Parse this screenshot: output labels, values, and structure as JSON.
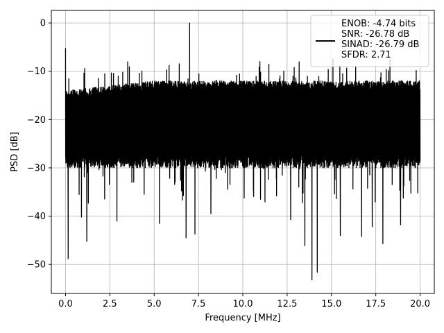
{
  "chart_data": {
    "type": "line",
    "title": "",
    "xlabel": "Frequency [MHz]",
    "ylabel": "PSD [dB]",
    "xlim": [
      -0.8,
      20.8
    ],
    "ylim": [
      -56,
      2.6
    ],
    "xticks": [
      0,
      2.5,
      5,
      7.5,
      10,
      12.5,
      15,
      17.5,
      20
    ],
    "xtick_labels": [
      "0.0",
      "2.5",
      "5.0",
      "7.5",
      "10.0",
      "12.5",
      "15.0",
      "17.5",
      "20.0"
    ],
    "yticks": [
      0,
      -10,
      -20,
      -30,
      -40,
      -50
    ],
    "ytick_labels": [
      "0",
      "−10",
      "−20",
      "−30",
      "−40",
      "−50"
    ],
    "grid": true,
    "legend_position": "top-right",
    "series": [
      {
        "color": "#000000",
        "x_range": [
          0,
          20
        ],
        "typical_band": [
          -30,
          -12
        ],
        "notable_points": [
          {
            "x": 0.0,
            "y": -5.2
          },
          {
            "x": 0.15,
            "y": -48.8
          },
          {
            "x": 0.9,
            "y": -40.2
          },
          {
            "x": 1.2,
            "y": -45.2
          },
          {
            "x": 2.9,
            "y": -41.0
          },
          {
            "x": 5.3,
            "y": -41.5
          },
          {
            "x": 6.8,
            "y": -44.5
          },
          {
            "x": 7.0,
            "y": 0.0
          },
          {
            "x": 7.3,
            "y": -43.7
          },
          {
            "x": 8.2,
            "y": -39.5
          },
          {
            "x": 11.0,
            "y": -36.5
          },
          {
            "x": 12.7,
            "y": -40.7
          },
          {
            "x": 13.5,
            "y": -46.1
          },
          {
            "x": 13.9,
            "y": -53.2
          },
          {
            "x": 14.2,
            "y": -51.6
          },
          {
            "x": 15.5,
            "y": -44.0
          },
          {
            "x": 16.7,
            "y": -44.2
          },
          {
            "x": 17.3,
            "y": -42.2
          },
          {
            "x": 17.9,
            "y": -45.7
          },
          {
            "x": 18.9,
            "y": -41.8
          }
        ]
      }
    ],
    "legend_lines": [
      "ENOB: -4.74 bits",
      "SNR: -26.78 dB",
      "SINAD: -26.79 dB",
      "SFDR: 2.71"
    ]
  }
}
